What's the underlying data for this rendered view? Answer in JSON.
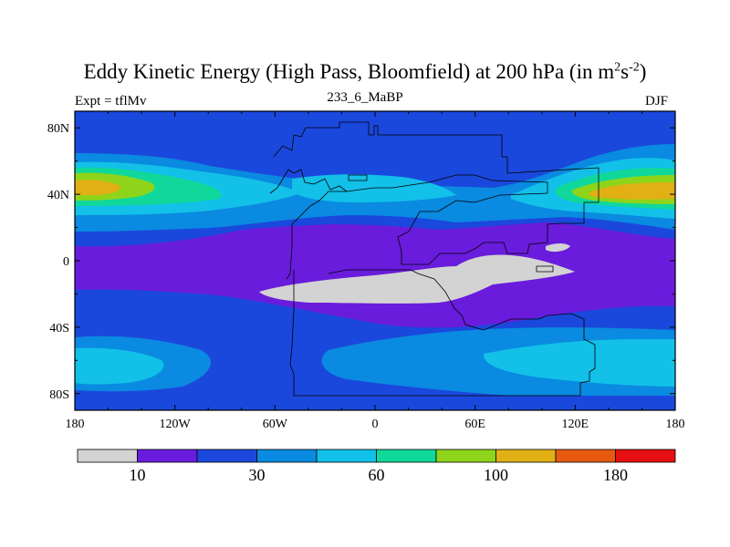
{
  "header": {
    "title": "Eddy Kinetic Energy (High Pass, Bloomfield) at 200 hPa (in m",
    "title_sup1": "2",
    "title_mid": "s",
    "title_sup2": "-2",
    "title_end": ")",
    "subtitle": "233_6_MaBP",
    "left_label": "Expt = tflMv",
    "right_label": "DJF"
  },
  "map": {
    "projection": "cylindrical-equidistant",
    "lon_range": [
      -180,
      180
    ],
    "lat_range": [
      -90,
      90
    ],
    "lat_ticks": [
      {
        "value": 80,
        "label": "80N"
      },
      {
        "value": 40,
        "label": "40N"
      },
      {
        "value": 0,
        "label": "0"
      },
      {
        "value": -40,
        "label": "40S"
      },
      {
        "value": -80,
        "label": "80S"
      }
    ],
    "lon_ticks": [
      {
        "value": -180,
        "label": "180"
      },
      {
        "value": -120,
        "label": "120W"
      },
      {
        "value": -60,
        "label": "60W"
      },
      {
        "value": 0,
        "label": "0"
      },
      {
        "value": 60,
        "label": "60E"
      },
      {
        "value": 120,
        "label": "120E"
      },
      {
        "value": 180,
        "label": "180"
      }
    ]
  },
  "colorbar": {
    "colors": [
      "#d3d3d3",
      "#6a1cdc",
      "#1b48dc",
      "#0a8ae0",
      "#12c0e8",
      "#10d89a",
      "#8ed41a",
      "#e0b014",
      "#e65a10",
      "#e60f12"
    ],
    "labels": [
      "10",
      "30",
      "60",
      "100",
      "180"
    ]
  },
  "colors": {
    "level_bg": "#6a1cdc",
    "level1": "#1b48dc",
    "level2": "#0a8ae0",
    "level3": "#12c0e8",
    "level4": "#10d89a",
    "level5": "#8ed41a",
    "level6": "#e0b014",
    "below": "#d3d3d3"
  }
}
